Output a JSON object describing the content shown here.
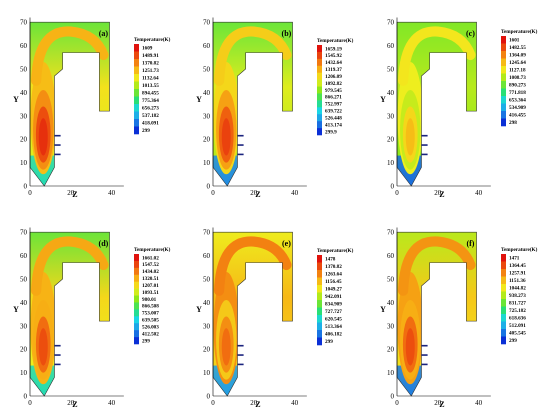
{
  "colormap": [
    "#0a2fd6",
    "#1f8fe8",
    "#1ad6e6",
    "#2be06b",
    "#8fe81a",
    "#f2ee1e",
    "#f7ae14",
    "#ef5d0f",
    "#e0120c"
  ],
  "axis_label_y": "Y",
  "axis_label_x": "Z",
  "x_ticks": [
    "0",
    "20",
    "40"
  ],
  "y_ticks": [
    "0",
    "10",
    "20",
    "30",
    "40",
    "50",
    "60",
    "70"
  ],
  "panels": [
    {
      "label": "(a)",
      "legend_title": "Temperature(K)",
      "legend_values": [
        "1609",
        "1489.91",
        "1370.82",
        "1251.73",
        "1132.64",
        "1013.55",
        "894.455",
        "775.364",
        "656.273",
        "537.182",
        "418.091",
        "299"
      ],
      "core_hot": 0.95,
      "mid_level": 0.6,
      "top_level": 0.45,
      "hopper_cool": 0.3
    },
    {
      "label": "(b)",
      "legend_title": "Temperature(K)",
      "legend_values": [
        "1659.19",
        "1545.92",
        "1432.64",
        "1319.37",
        "1206.09",
        "1092.82",
        "979.545",
        "866.271",
        "752.997",
        "639.722",
        "526.448",
        "413.174",
        "299.9"
      ],
      "core_hot": 0.92,
      "mid_level": 0.55,
      "top_level": 0.45,
      "hopper_cool": 0.12
    },
    {
      "label": "(c)",
      "legend_title": "Temperature(K)",
      "legend_values": [
        "1601",
        "1482.55",
        "1364.09",
        "1245.64",
        "1127.18",
        "1008.73",
        "890.273",
        "771.818",
        "653.364",
        "534.909",
        "416.455",
        "298"
      ],
      "core_hot": 0.72,
      "mid_level": 0.5,
      "top_level": 0.48,
      "hopper_cool": 0.08
    },
    {
      "label": "(d)",
      "legend_title": "Temperature(K)",
      "legend_values": [
        "1661.02",
        "1547.52",
        "1434.02",
        "1320.51",
        "1207.01",
        "1093.51",
        "980.01",
        "866.508",
        "753.007",
        "639.505",
        "526.003",
        "412.502",
        "299"
      ],
      "core_hot": 0.9,
      "mid_level": 0.62,
      "top_level": 0.45,
      "hopper_cool": 0.3
    },
    {
      "label": "(e)",
      "legend_title": "Temperature(K)",
      "legend_values": [
        "1478",
        "1370.82",
        "1263.64",
        "1156.45",
        "1049.27",
        "942.091",
        "834.909",
        "727.727",
        "620.545",
        "513.364",
        "406.182",
        "299"
      ],
      "core_hot": 0.85,
      "mid_level": 0.68,
      "top_level": 0.62,
      "hopper_cool": 0.15
    },
    {
      "label": "(f)",
      "legend_title": "Temperature(K)",
      "legend_values": [
        "1471",
        "1364.45",
        "1257.91",
        "1151.36",
        "1044.82",
        "938.273",
        "831.727",
        "725.182",
        "618.636",
        "512.091",
        "405.545",
        "299"
      ],
      "core_hot": 0.9,
      "mid_level": 0.65,
      "top_level": 0.55,
      "hopper_cool": 0.1
    }
  ]
}
